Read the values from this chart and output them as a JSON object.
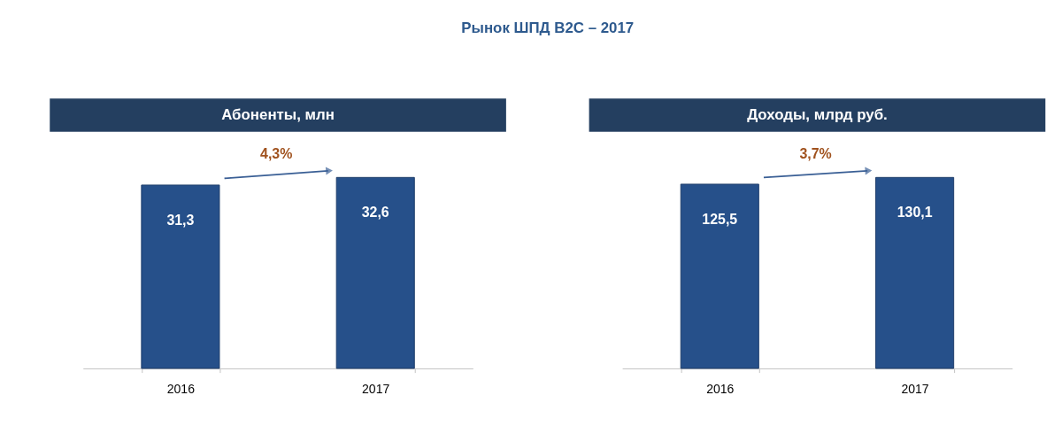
{
  "chart_data": [
    {
      "type": "bar",
      "title": "Рынок ШПД B2C – 2017",
      "subtitle": "Абоненты, млн",
      "categories": [
        "2016",
        "2017"
      ],
      "values": [
        31.3,
        32.6
      ],
      "value_labels": [
        "31,3",
        "32,6"
      ],
      "color": "#26508a",
      "annotations": [
        "4,3%"
      ]
    },
    {
      "type": "bar",
      "subtitle": "Доходы, млрд руб.",
      "categories": [
        "2016",
        "2017"
      ],
      "values": [
        125.5,
        130.1
      ],
      "value_labels": [
        "125,5",
        "130,1"
      ],
      "color": "#26508a",
      "annotations": [
        "3,7%"
      ]
    }
  ]
}
